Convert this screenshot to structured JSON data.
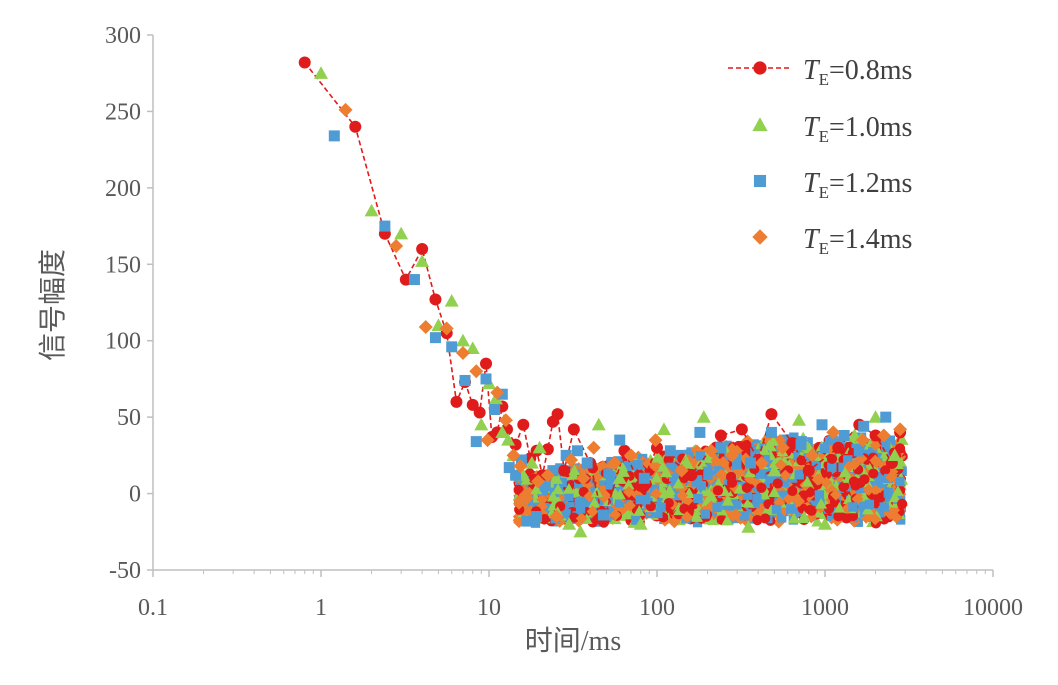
{
  "chart_data": {
    "type": "scatter",
    "xlabel": "时间/ms",
    "ylabel": "信号幅度",
    "xscale": "log",
    "xlim": [
      0.1,
      10000
    ],
    "ylim": [
      -50,
      300
    ],
    "x_ticks": [
      "0.1",
      "1",
      "10",
      "100",
      "1000",
      "10000"
    ],
    "y_ticks": [
      "300",
      "250",
      "200",
      "150",
      "100",
      "50",
      "0",
      "-50"
    ],
    "grid": false,
    "legend_position": "top-right",
    "noise_floor_range": [
      -25,
      45
    ],
    "series": [
      {
        "name": "T_E=0.8ms",
        "legend": {
          "var": "T",
          "sub": "E",
          "rest": "=0.8ms"
        },
        "marker": "circle",
        "color": "#e01b1b",
        "line": "dashed",
        "x": [
          0.8,
          1.6,
          2.4,
          3.2,
          4.0,
          4.8,
          5.6,
          6.4,
          7.2,
          8.0,
          8.8,
          9.6,
          10.4,
          11.2,
          12.0,
          12.8,
          14.4,
          16.0,
          17.6,
          19.2,
          20.8,
          22.4,
          24.0,
          25.6,
          28.0,
          32.0,
          40.0,
          48.0,
          64.0,
          80.0,
          100.0,
          160.0,
          240.0,
          320.0,
          400.0,
          480.0,
          640.0,
          800.0,
          1200.0,
          1600.0,
          2000.0,
          2500.0,
          2800.0
        ],
        "y": [
          282,
          240,
          170,
          140,
          160,
          127,
          105,
          60,
          73,
          58,
          53,
          85,
          37,
          40,
          57,
          42,
          32,
          45,
          23,
          28,
          12,
          29,
          47,
          52,
          15,
          42,
          20,
          -18,
          28,
          5,
          30,
          12,
          38,
          42,
          22,
          52,
          33,
          15,
          30,
          45,
          38,
          20,
          40
        ]
      },
      {
        "name": "T_E=1.0ms",
        "legend": {
          "var": "T",
          "sub": "E",
          "rest": "=1.0ms"
        },
        "marker": "triangle",
        "color": "#92d050",
        "x": [
          1.0,
          2.0,
          3.0,
          4.0,
          5.0,
          6.0,
          7.0,
          8.0,
          9.0,
          10.0,
          11.0,
          12.0,
          13.0,
          14.0,
          16.0,
          18.0,
          20.0,
          25.0,
          30.0,
          35.0,
          45.0,
          60.0,
          80.0,
          110.0,
          150.0,
          190.0,
          250.0,
          350.0,
          500.0,
          700.0,
          1000.0,
          1500.0,
          2000.0,
          2600.0
        ],
        "y": [
          275,
          185,
          170,
          152,
          110,
          126,
          100,
          95,
          45,
          72,
          62,
          40,
          35,
          25,
          12,
          20,
          30,
          10,
          -20,
          -25,
          45,
          10,
          -20,
          42,
          20,
          50,
          30,
          -22,
          15,
          48,
          -20,
          38,
          50,
          25
        ]
      },
      {
        "name": "T_E=1.2ms",
        "legend": {
          "var": "T",
          "sub": "E",
          "rest": "=1.2ms"
        },
        "marker": "square",
        "color": "#4f9bd4",
        "x": [
          1.2,
          2.4,
          3.6,
          4.8,
          6.0,
          7.2,
          8.4,
          9.6,
          10.8,
          12.0,
          13.2,
          14.4,
          15.6,
          16.8,
          19.2,
          21.6,
          24.0,
          28.8,
          33.6,
          38.4,
          48.0,
          60.0,
          84.0,
          120.0,
          180.0,
          240.0,
          360.0,
          480.0,
          720.0,
          960.0,
          1300.0,
          1700.0,
          2300.0
        ],
        "y": [
          234,
          175,
          140,
          102,
          96,
          74,
          34,
          75,
          55,
          65,
          17,
          12,
          22,
          -18,
          -15,
          5,
          15,
          25,
          28,
          20,
          -14,
          35,
          10,
          28,
          40,
          30,
          20,
          40,
          32,
          45,
          38,
          44,
          50
        ]
      },
      {
        "name": "T_E=1.4ms",
        "legend": {
          "var": "T",
          "sub": "E",
          "rest": "=1.4ms"
        },
        "marker": "diamond",
        "color": "#ed7d31",
        "x": [
          1.4,
          2.8,
          4.2,
          5.6,
          7.0,
          8.4,
          9.8,
          11.2,
          12.6,
          14.0,
          15.4,
          16.8,
          19.6,
          22.4,
          25.2,
          30.8,
          36.4,
          42.0,
          56.0,
          70.0,
          98.0,
          140.0,
          210.0,
          280.0,
          420.0,
          560.0,
          840.0,
          1120.0,
          1680.0,
          2240.0,
          2800.0
        ],
        "y": [
          251,
          162,
          109,
          108,
          92,
          80,
          35,
          66,
          48,
          25,
          18,
          -3,
          8,
          12,
          -15,
          22,
          10,
          30,
          20,
          25,
          35,
          15,
          28,
          25,
          20,
          30,
          25,
          40,
          35,
          38,
          42
        ]
      }
    ]
  }
}
